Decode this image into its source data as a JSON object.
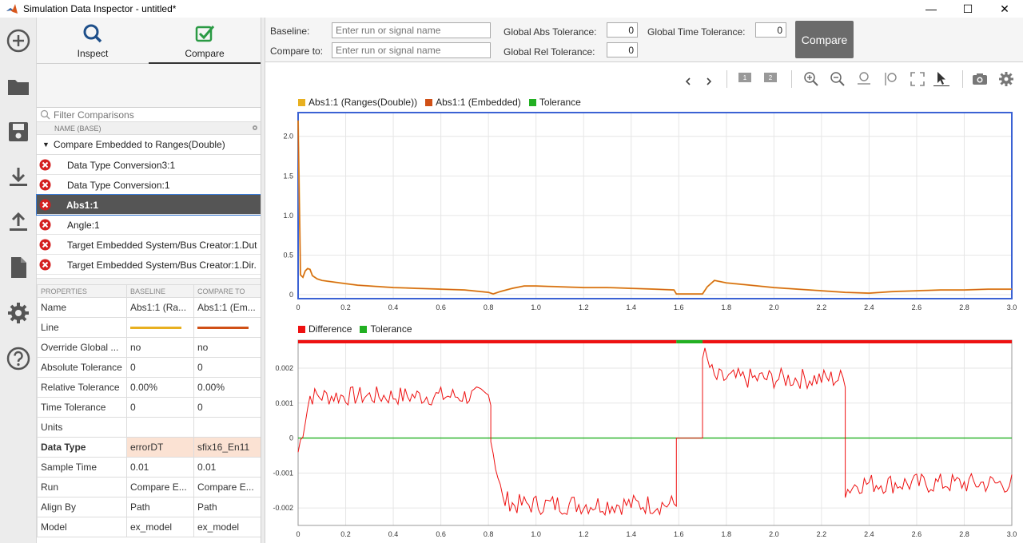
{
  "window": {
    "title": "Simulation Data Inspector - untitled*",
    "minimize": "—",
    "maximize": "☐",
    "close": "✕"
  },
  "tabs": [
    {
      "label": "Inspect"
    },
    {
      "label": "Compare"
    }
  ],
  "filter": {
    "placeholder": "Filter Comparisons"
  },
  "tree": {
    "column_header": "NAME (BASE)",
    "group_label": "Compare Embedded to Ranges(Double)",
    "rows": [
      {
        "label": "Data Type Conversion3:1"
      },
      {
        "label": "Data Type Conversion:1"
      },
      {
        "label": "Abs1:1"
      },
      {
        "label": "Angle:1"
      },
      {
        "label": "Target Embedded System/Bus Creator:1.Dut"
      },
      {
        "label": "Target Embedded System/Bus Creator:1.Dir."
      }
    ]
  },
  "properties": {
    "headers": [
      "PROPERTIES",
      "BASELINE",
      "COMPARE TO"
    ],
    "rows": [
      {
        "name": "Name",
        "baseline": "Abs1:1 (Ra...",
        "compare": "Abs1:1 (Em..."
      },
      {
        "name": "Line",
        "baseline": "",
        "compare": ""
      },
      {
        "name": "Override Global ...",
        "baseline": "no",
        "compare": "no"
      },
      {
        "name": "Absolute Tolerance",
        "baseline": "0",
        "compare": "0"
      },
      {
        "name": "Relative Tolerance",
        "baseline": "0.00%",
        "compare": "0.00%"
      },
      {
        "name": "Time Tolerance",
        "baseline": "0",
        "compare": "0"
      },
      {
        "name": "Units",
        "baseline": "",
        "compare": ""
      },
      {
        "name": "Data Type",
        "baseline": "errorDT",
        "compare": "sfix16_En11"
      },
      {
        "name": "Sample Time",
        "baseline": "0.01",
        "compare": "0.01"
      },
      {
        "name": "Run",
        "baseline": "Compare E...",
        "compare": "Compare E..."
      },
      {
        "name": "Align By",
        "baseline": "Path",
        "compare": "Path"
      },
      {
        "name": "Model",
        "baseline": "ex_model",
        "compare": "ex_model"
      }
    ],
    "line_colors": {
      "baseline": "#e8b020",
      "compare": "#d05016"
    }
  },
  "toolbar": {
    "baseline_label": "Baseline:",
    "compare_to_label": "Compare to:",
    "baseline_placeholder": "Enter run or signal name",
    "compare_to_placeholder": "Enter run or signal name",
    "abs_tol_label": "Global Abs Tolerance:",
    "rel_tol_label": "Global Rel Tolerance:",
    "time_tol_label": "Global Time Tolerance:",
    "abs_tol_value": "0",
    "rel_tol_value": "0",
    "time_tol_value": "0",
    "compare_button": "Compare"
  },
  "plot_tools": [
    "back-icon",
    "forward-icon",
    "layout-1-icon",
    "layout-2-icon",
    "zoom-in-icon",
    "zoom-out-icon",
    "zoom-y-icon",
    "zoom-x-icon",
    "fit-to-view-icon",
    "cursor-icon",
    "snapshot-icon",
    "settings-icon"
  ],
  "colors": {
    "baseline": "#e8b020",
    "compare": "#d05016",
    "tolerance": "#22b022",
    "difference": "#ee1111",
    "accent": "#3b62d4"
  },
  "chart_data": [
    {
      "type": "line",
      "legend": [
        "Abs1:1 (Ranges(Double))",
        "Abs1:1 (Embedded)",
        "Tolerance"
      ],
      "xlim": [
        0,
        3.0
      ],
      "ylim": [
        -0.05,
        2.3
      ],
      "xticks": [
        "0",
        "0.2",
        "0.4",
        "0.6",
        "0.8",
        "1.0",
        "1.2",
        "1.4",
        "1.6",
        "1.8",
        "2.0",
        "2.2",
        "2.4",
        "2.6",
        "2.8",
        "3.0"
      ],
      "yticks": [
        "0",
        "0.5",
        "1.0",
        "1.5",
        "2.0"
      ],
      "ytick_values": [
        0,
        0.5,
        1.0,
        1.5,
        2.0
      ],
      "series": [
        {
          "name": "Abs1:1 (Ranges(Double))",
          "x": [
            0,
            0.01,
            0.02,
            0.03,
            0.04,
            0.05,
            0.06,
            0.08,
            0.1,
            0.15,
            0.2,
            0.25,
            0.3,
            0.4,
            0.5,
            0.6,
            0.7,
            0.8,
            0.82,
            0.85,
            0.9,
            0.95,
            1.0,
            1.1,
            1.2,
            1.3,
            1.4,
            1.5,
            1.58,
            1.59,
            1.6,
            1.65,
            1.7,
            1.72,
            1.75,
            1.8,
            1.9,
            2.0,
            2.1,
            2.2,
            2.3,
            2.4,
            2.5,
            2.6,
            2.7,
            2.8,
            2.9,
            3.0
          ],
          "y": [
            2.2,
            0.25,
            0.22,
            0.3,
            0.33,
            0.32,
            0.24,
            0.2,
            0.18,
            0.16,
            0.14,
            0.12,
            0.11,
            0.09,
            0.08,
            0.07,
            0.06,
            0.03,
            0.01,
            0.04,
            0.08,
            0.11,
            0.11,
            0.1,
            0.09,
            0.09,
            0.08,
            0.07,
            0.06,
            0.01,
            0.01,
            0.01,
            0.01,
            0.1,
            0.18,
            0.15,
            0.12,
            0.09,
            0.07,
            0.05,
            0.03,
            0.02,
            0.04,
            0.05,
            0.06,
            0.06,
            0.07,
            0.07
          ]
        },
        {
          "name": "Abs1:1 (Embedded)",
          "x": [
            0,
            0.01,
            0.02,
            0.03,
            0.04,
            0.05,
            0.06,
            0.08,
            0.1,
            0.15,
            0.2,
            0.25,
            0.3,
            0.4,
            0.5,
            0.6,
            0.7,
            0.8,
            0.82,
            0.85,
            0.9,
            0.95,
            1.0,
            1.1,
            1.2,
            1.3,
            1.4,
            1.5,
            1.58,
            1.59,
            1.6,
            1.65,
            1.7,
            1.72,
            1.75,
            1.8,
            1.9,
            2.0,
            2.1,
            2.2,
            2.3,
            2.4,
            2.5,
            2.6,
            2.7,
            2.8,
            2.9,
            3.0
          ],
          "y": [
            2.2,
            0.25,
            0.22,
            0.3,
            0.33,
            0.32,
            0.24,
            0.2,
            0.18,
            0.16,
            0.14,
            0.12,
            0.11,
            0.09,
            0.08,
            0.07,
            0.06,
            0.03,
            0.01,
            0.04,
            0.08,
            0.11,
            0.11,
            0.1,
            0.09,
            0.09,
            0.08,
            0.07,
            0.06,
            0.01,
            0.01,
            0.01,
            0.01,
            0.1,
            0.18,
            0.15,
            0.12,
            0.09,
            0.07,
            0.05,
            0.03,
            0.02,
            0.04,
            0.05,
            0.06,
            0.06,
            0.07,
            0.07
          ]
        }
      ]
    },
    {
      "type": "line",
      "legend": [
        "Difference",
        "Tolerance"
      ],
      "xlim": [
        0,
        3.0
      ],
      "ylim": [
        -0.0025,
        0.0028
      ],
      "xticks": [
        "0",
        "0.2",
        "0.4",
        "0.6",
        "0.8",
        "1.0",
        "1.2",
        "1.4",
        "1.6",
        "1.8",
        "2.0",
        "2.2",
        "2.4",
        "2.6",
        "2.8",
        "3.0"
      ],
      "yticks": [
        "-0.002",
        "-0.001",
        "0",
        "0.001",
        "0.002"
      ],
      "ytick_values": [
        -0.002,
        -0.001,
        0,
        0.001,
        0.002
      ],
      "series": [
        {
          "name": "Difference",
          "segments": [
            {
              "x0": 0,
              "x1": 0.81,
              "mean": 0.0012,
              "start": -0.0004,
              "noise": 0.00028
            },
            {
              "x0": 0.81,
              "x1": 0.9,
              "mean": -0.0018,
              "start": 0.0,
              "noise": 0.0003
            },
            {
              "x0": 0.9,
              "x1": 1.59,
              "mean": -0.0019,
              "start": -0.0019,
              "noise": 0.0003
            },
            {
              "x0": 1.59,
              "x1": 1.7,
              "mean": 0.0,
              "start": 0.0,
              "noise": 0.0
            },
            {
              "x0": 1.7,
              "x1": 2.3,
              "mean": 0.0017,
              "start": 0.0025,
              "noise": 0.0003
            },
            {
              "x0": 2.3,
              "x1": 3.0,
              "mean": -0.0013,
              "start": -0.0015,
              "noise": 0.0003
            }
          ]
        },
        {
          "name": "Tolerance",
          "x": [
            0,
            3.0
          ],
          "y": [
            0,
            0
          ]
        }
      ],
      "status_bar": [
        {
          "x0": 0,
          "x1": 1.59,
          "state": "fail"
        },
        {
          "x0": 1.59,
          "x1": 1.7,
          "state": "pass"
        },
        {
          "x0": 1.7,
          "x1": 3.0,
          "state": "fail"
        }
      ]
    }
  ]
}
